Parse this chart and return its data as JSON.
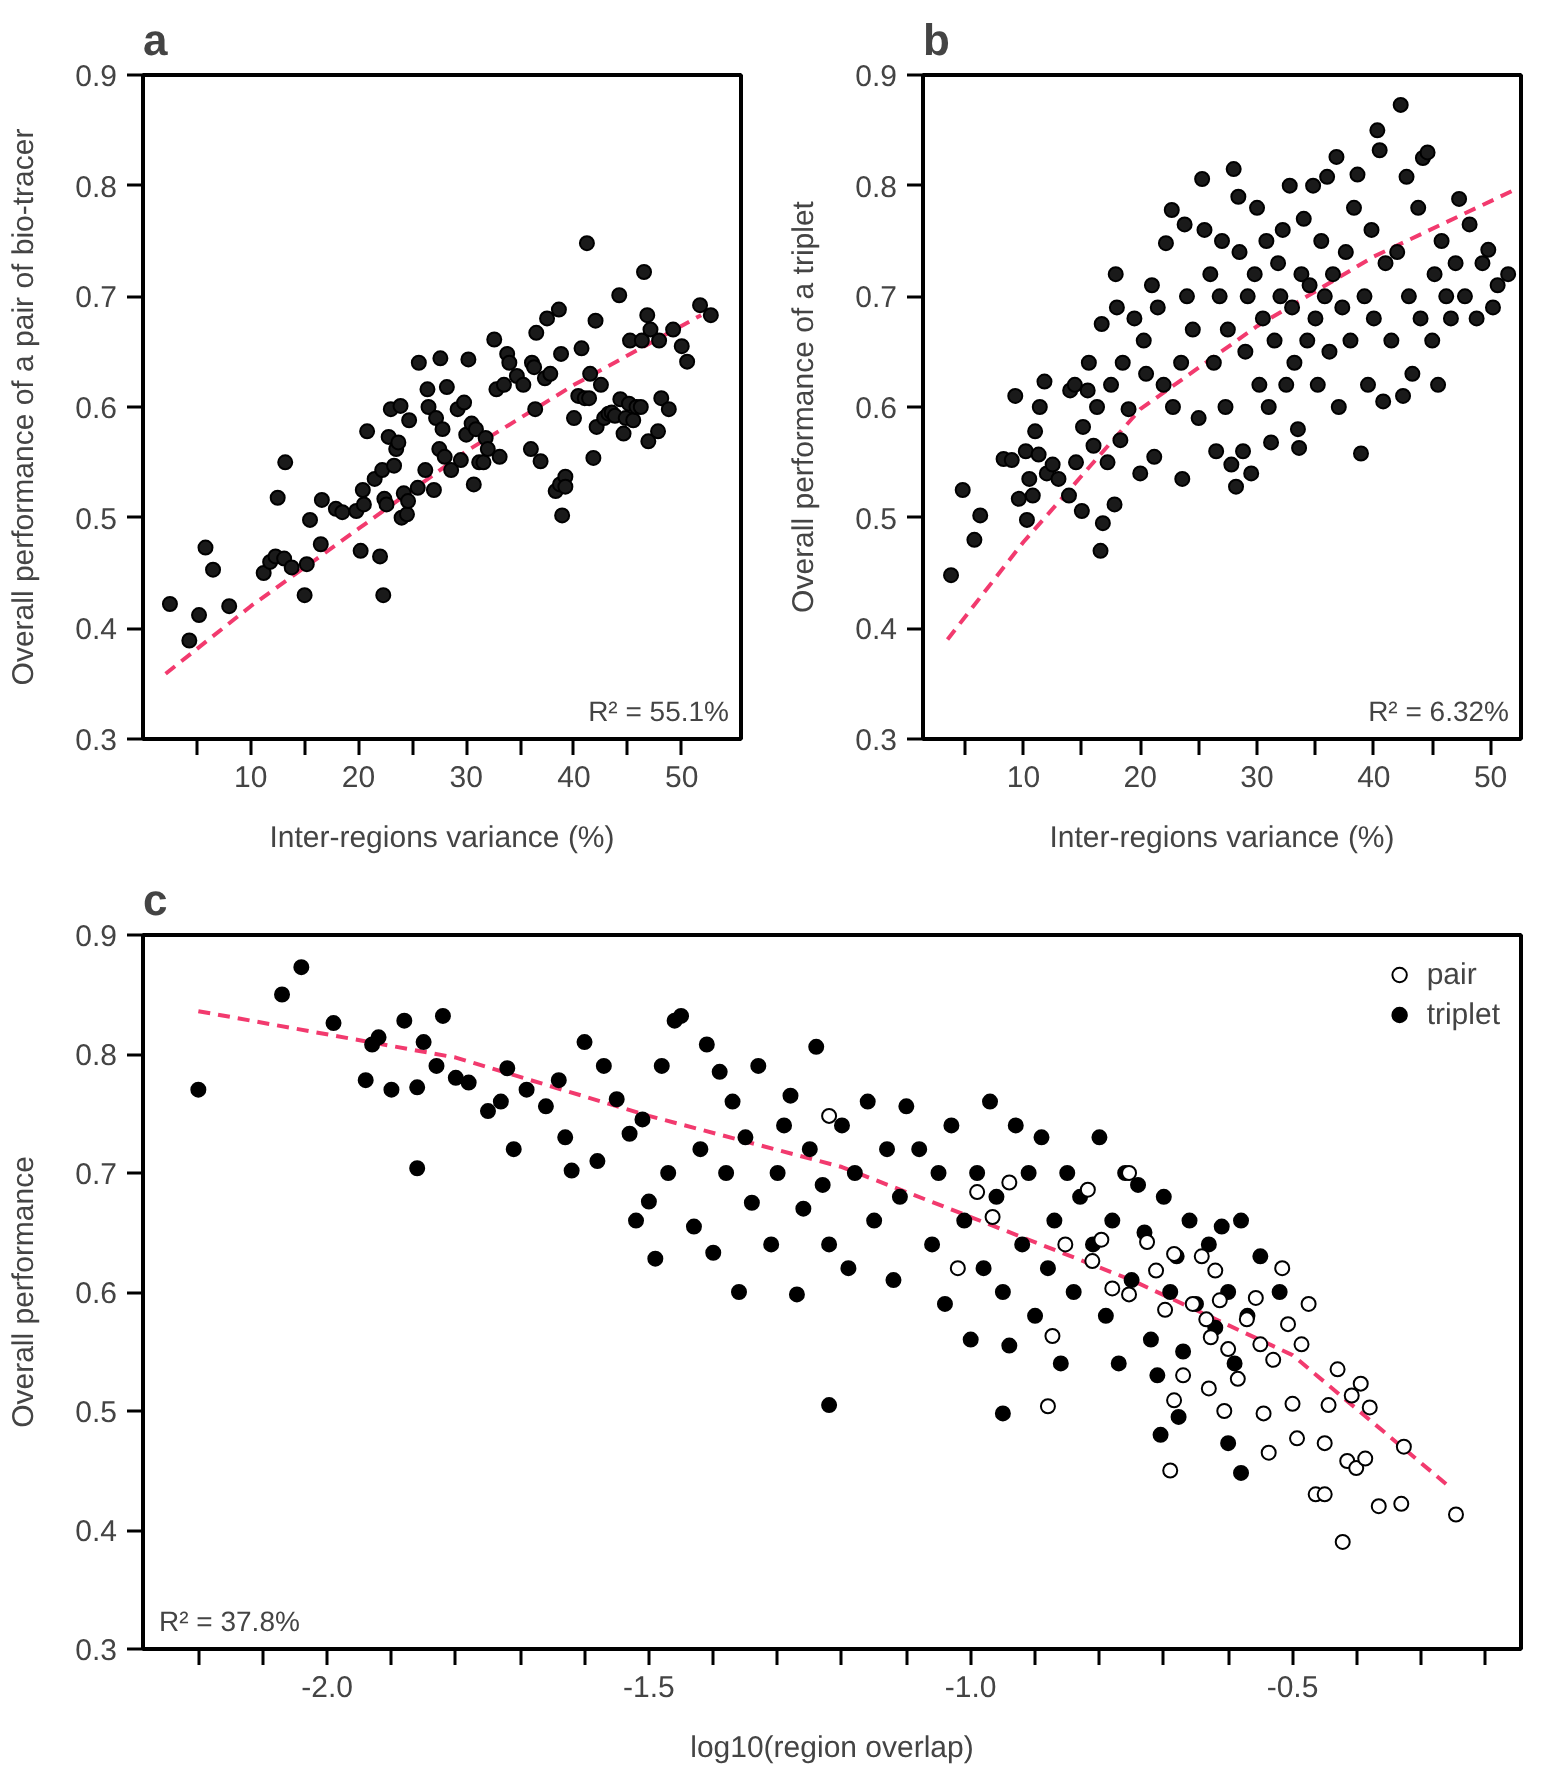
{
  "chart_data": [
    {
      "type": "scatter",
      "title": "a",
      "xlabel": "Inter-regions variance (%)",
      "ylabel": "Overall performance of a pair of bio-tracer",
      "xlim": [
        0,
        55.5
      ],
      "xticks": [
        {
          "value": 5,
          "label": null
        },
        10,
        {
          "value": 15,
          "label": null
        },
        20,
        {
          "value": 25,
          "label": null
        },
        30,
        {
          "value": 35,
          "label": null
        },
        40,
        {
          "value": 45,
          "label": null
        },
        50
      ],
      "ylim": [
        0.3,
        0.9
      ],
      "yticks": [
        0.3,
        0.4,
        0.5,
        0.6,
        0.7,
        0.8,
        0.9
      ],
      "grid": false,
      "annotations": [
        "R² = 55.1%"
      ],
      "series": [
        {
          "color": "#1a1a1a",
          "marker": "circle",
          "x": [
            2.5,
            4.3,
            5.2,
            5.8,
            6.5,
            8,
            11.2,
            11.8,
            12.3,
            12.5,
            13.1,
            13.2,
            13.8,
            15,
            15.2,
            15.5,
            16.5,
            16.6,
            17.9,
            18.5,
            19.8,
            20.2,
            20.4,
            20.5,
            20.8,
            21.5,
            22,
            22.3,
            22.2,
            22.4,
            22.6,
            22.8,
            23,
            23.3,
            23.5,
            23.7,
            23.9,
            24,
            24.2,
            24.5,
            24.6,
            24.7,
            25.5,
            25.6,
            26.2,
            26.4,
            26.5,
            27,
            27.2,
            27.5,
            27.6,
            27.8,
            28,
            28.2,
            28.6,
            29.2,
            29.5,
            29.8,
            30,
            30.2,
            30.5,
            30.7,
            30.9,
            31.2,
            31.6,
            31.8,
            32,
            32.6,
            32.8,
            33.1,
            33.5,
            33.8,
            34,
            34.7,
            35.3,
            36,
            36.1,
            36.3,
            36.4,
            36.5,
            36.9,
            37.3,
            37.5,
            37.8,
            38.3,
            38.6,
            38.7,
            38.8,
            38.9,
            39.2,
            39.2,
            40,
            40.4,
            40.7,
            41,
            41.2,
            41.4,
            41.5,
            41.8,
            42,
            42.1,
            42.5,
            42.8,
            43.2,
            43.5,
            43.8,
            44.2,
            44.3,
            44.6,
            44.8,
            45.1,
            45.2,
            45.5,
            45.8,
            46.2,
            46.3,
            46.5,
            46.8,
            46.9,
            47.1,
            47.8,
            47.9,
            48.1,
            48.8,
            49.2,
            50,
            50.5,
            51.7,
            52.7
          ],
          "values": [
            0.422,
            0.389,
            0.412,
            0.473,
            0.453,
            0.42,
            0.45,
            0.46,
            0.465,
            0.518,
            0.463,
            0.55,
            0.455,
            0.43,
            0.458,
            0.498,
            0.476,
            0.516,
            0.508,
            0.505,
            0.506,
            0.47,
            0.525,
            0.512,
            0.578,
            0.535,
            0.465,
            0.43,
            0.543,
            0.517,
            0.512,
            0.573,
            0.598,
            0.547,
            0.562,
            0.568,
            0.601,
            0.5,
            0.522,
            0.503,
            0.515,
            0.588,
            0.527,
            0.64,
            0.543,
            0.616,
            0.6,
            0.525,
            0.59,
            0.562,
            0.644,
            0.58,
            0.555,
            0.618,
            0.543,
            0.598,
            0.552,
            0.604,
            0.575,
            0.643,
            0.585,
            0.53,
            0.58,
            0.55,
            0.55,
            0.572,
            0.562,
            0.661,
            0.616,
            0.555,
            0.62,
            0.648,
            0.64,
            0.628,
            0.62,
            0.562,
            0.64,
            0.636,
            0.598,
            0.667,
            0.551,
            0.626,
            0.68,
            0.63,
            0.524,
            0.688,
            0.53,
            0.648,
            0.502,
            0.537,
            0.528,
            0.59,
            0.61,
            0.653,
            0.608,
            0.748,
            0.608,
            0.63,
            0.554,
            0.678,
            0.582,
            0.62,
            0.59,
            0.594,
            0.595,
            0.592,
            0.701,
            0.607,
            0.576,
            0.59,
            0.603,
            0.66,
            0.588,
            0.6,
            0.6,
            0.66,
            0.722,
            0.683,
            0.569,
            0.67,
            0.578,
            0.66,
            0.608,
            0.598,
            0.67,
            0.655,
            0.641,
            0.692,
            0.683
          ]
        },
        {
          "type": "line",
          "color": "#f23a6e",
          "line_style": "dashed",
          "marker": "none",
          "x": [
            2.1,
            10,
            20,
            30,
            40,
            51.8
          ],
          "values": [
            0.359,
            0.42,
            0.49,
            0.56,
            0.62,
            0.683
          ]
        }
      ]
    },
    {
      "type": "scatter",
      "title": "b",
      "xlabel": "Inter-regions variance (%)",
      "ylabel": "Overall performance of a triplet",
      "xlim": [
        1.4,
        52.6
      ],
      "xticks": [
        {
          "value": 5,
          "label": null
        },
        10,
        {
          "value": 15,
          "label": null
        },
        20,
        {
          "value": 25,
          "label": null
        },
        30,
        {
          "value": 35,
          "label": null
        },
        40,
        {
          "value": 45,
          "label": null
        },
        50
      ],
      "ylim": [
        0.3,
        0.9
      ],
      "yticks": [
        0.3,
        0.4,
        0.5,
        0.6,
        0.7,
        0.8,
        0.9
      ],
      "grid": false,
      "annotations": [
        "R² = 6.32%"
      ],
      "series": [
        {
          "color": "#1a1a1a",
          "marker": "circle",
          "x": [
            3.8,
            4.8,
            5.8,
            6.3,
            9.3,
            8.3,
            9,
            9.6,
            10.2,
            10.3,
            10.5,
            10.8,
            11,
            11.3,
            11.4,
            11.8,
            12,
            12.5,
            13,
            13.9,
            14,
            14.4,
            14.5,
            15,
            15.1,
            15.5,
            15.6,
            16,
            16.3,
            16.6,
            16.7,
            16.8,
            17.2,
            17.5,
            17.8,
            17.9,
            18,
            18.3,
            18.5,
            19,
            19.5,
            20,
            20.3,
            20.5,
            21,
            21.2,
            21.5,
            22,
            22.2,
            22.7,
            22.8,
            23.5,
            23.6,
            23.8,
            24,
            24.5,
            25,
            25.3,
            25.5,
            26,
            26.3,
            26.5,
            26.8,
            27,
            27.3,
            27.5,
            27.8,
            28,
            28.2,
            28.4,
            28.5,
            28.8,
            29,
            29.2,
            29.5,
            29.8,
            30,
            30.2,
            30.5,
            30.8,
            31,
            31.2,
            31.5,
            31.8,
            32,
            32.2,
            32.5,
            32.8,
            33,
            33.2,
            33.5,
            33.6,
            33.8,
            34,
            34.3,
            34.5,
            34.8,
            35,
            35.2,
            35.5,
            35.8,
            36,
            36.2,
            36.5,
            36.8,
            37,
            37.3,
            37.6,
            38,
            38.3,
            38.6,
            38.9,
            39.2,
            39.5,
            39.8,
            40,
            40.3,
            40.5,
            40.8,
            41,
            41.5,
            42,
            42.3,
            42.5,
            42.8,
            43,
            43.3,
            43.8,
            44,
            44.2,
            44.6,
            45,
            45.2,
            45.5,
            45.8,
            46.2,
            46.6,
            47,
            47.3,
            47.8,
            48.2,
            48.8,
            49.3,
            49.8,
            50.2,
            50.6,
            51.5
          ],
          "values": [
            0.448,
            0.525,
            0.48,
            0.502,
            0.61,
            0.553,
            0.552,
            0.517,
            0.56,
            0.498,
            0.535,
            0.52,
            0.578,
            0.557,
            0.6,
            0.623,
            0.54,
            0.548,
            0.535,
            0.52,
            0.615,
            0.62,
            0.55,
            0.506,
            0.582,
            0.615,
            0.64,
            0.565,
            0.6,
            0.47,
            0.675,
            0.495,
            0.55,
            0.62,
            0.512,
            0.72,
            0.69,
            0.57,
            0.64,
            0.598,
            0.68,
            0.54,
            0.66,
            0.63,
            0.71,
            0.555,
            0.69,
            0.62,
            0.748,
            0.778,
            0.6,
            0.64,
            0.535,
            0.765,
            0.7,
            0.67,
            0.59,
            0.806,
            0.76,
            0.72,
            0.64,
            0.56,
            0.7,
            0.75,
            0.6,
            0.67,
            0.548,
            0.815,
            0.528,
            0.79,
            0.74,
            0.56,
            0.65,
            0.7,
            0.54,
            0.72,
            0.78,
            0.62,
            0.68,
            0.75,
            0.6,
            0.568,
            0.66,
            0.73,
            0.7,
            0.76,
            0.62,
            0.8,
            0.69,
            0.64,
            0.58,
            0.563,
            0.72,
            0.77,
            0.66,
            0.71,
            0.8,
            0.68,
            0.62,
            0.75,
            0.7,
            0.808,
            0.65,
            0.72,
            0.826,
            0.6,
            0.69,
            0.74,
            0.66,
            0.78,
            0.81,
            0.558,
            0.7,
            0.62,
            0.76,
            0.68,
            0.85,
            0.832,
            0.605,
            0.73,
            0.66,
            0.74,
            0.873,
            0.61,
            0.808,
            0.7,
            0.63,
            0.78,
            0.68,
            0.825,
            0.83,
            0.66,
            0.72,
            0.62,
            0.75,
            0.7,
            0.68,
            0.73,
            0.788,
            0.7,
            0.765,
            0.68,
            0.73,
            0.742,
            0.69,
            0.71,
            0.72
          ]
        },
        {
          "type": "line",
          "color": "#f23a6e",
          "line_style": "dashed",
          "marker": "none",
          "x": [
            3.5,
            10,
            20,
            30,
            40,
            52.2
          ],
          "values": [
            0.39,
            0.478,
            0.598,
            0.673,
            0.736,
            0.797
          ]
        }
      ]
    },
    {
      "type": "scatter",
      "title": "c",
      "xlabel": "log10(region overlap)",
      "ylabel": "Overall performance",
      "xlim": [
        -2.286,
        -0.145
      ],
      "xticks": [
        {
          "value": -2.2,
          "label": null
        },
        {
          "value": -2.1,
          "label": null
        },
        {
          "value": -2.0,
          "label": "-2.0"
        },
        {
          "value": -1.9,
          "label": null
        },
        {
          "value": -1.8,
          "label": null
        },
        {
          "value": -1.7,
          "label": null
        },
        {
          "value": -1.6,
          "label": null
        },
        {
          "value": -1.5,
          "label": "-1.5"
        },
        {
          "value": -1.4,
          "label": null
        },
        {
          "value": -1.3,
          "label": null
        },
        {
          "value": -1.2,
          "label": null
        },
        {
          "value": -1.1,
          "label": null
        },
        {
          "value": -1.0,
          "label": "-1.0"
        },
        {
          "value": -0.9,
          "label": null
        },
        {
          "value": -0.8,
          "label": null
        },
        {
          "value": -0.7,
          "label": null
        },
        {
          "value": -0.6,
          "label": null
        },
        {
          "value": -0.5,
          "label": "-0.5"
        },
        {
          "value": -0.4,
          "label": null
        },
        {
          "value": -0.3,
          "label": null
        },
        {
          "value": -0.2,
          "label": null
        }
      ],
      "ylim": [
        0.3,
        0.9
      ],
      "yticks": [
        0.3,
        0.4,
        0.5,
        0.6,
        0.7,
        0.8,
        0.9
      ],
      "grid": false,
      "legend": "top right",
      "annotations": [
        "R² = 37.8%"
      ],
      "series": [
        {
          "name": "pair",
          "color": "#ffffff",
          "marker": "circle",
          "x": [
            -1.22,
            -0.754,
            -1.02,
            -0.99,
            -0.966,
            -0.94,
            -0.88,
            -0.873,
            -0.853,
            -0.818,
            -0.811,
            -0.797,
            -0.78,
            -0.754,
            -0.726,
            -0.712,
            -0.698,
            -0.69,
            -0.684,
            -0.684,
            -0.67,
            -0.655,
            -0.641,
            -0.634,
            -0.63,
            -0.627,
            -0.62,
            -0.613,
            -0.606,
            -0.6,
            -0.585,
            -0.571,
            -0.557,
            -0.55,
            -0.545,
            -0.537,
            -0.53,
            -0.516,
            -0.507,
            -0.5,
            -0.493,
            -0.486,
            -0.475,
            -0.464,
            -0.45,
            -0.45,
            -0.444,
            -0.43,
            -0.422,
            -0.415,
            -0.408,
            -0.401,
            -0.394,
            -0.387,
            -0.38,
            -0.366,
            -0.331,
            -0.327,
            -0.246
          ],
          "values": [
            0.748,
            0.7,
            0.62,
            0.684,
            0.663,
            0.692,
            0.504,
            0.563,
            0.64,
            0.686,
            0.626,
            0.644,
            0.603,
            0.598,
            0.642,
            0.618,
            0.585,
            0.45,
            0.509,
            0.632,
            0.53,
            0.59,
            0.63,
            0.577,
            0.519,
            0.562,
            0.618,
            0.593,
            0.5,
            0.552,
            0.527,
            0.577,
            0.595,
            0.556,
            0.498,
            0.465,
            0.543,
            0.62,
            0.573,
            0.506,
            0.477,
            0.556,
            0.59,
            0.43,
            0.43,
            0.473,
            0.505,
            0.535,
            0.39,
            0.458,
            0.513,
            0.452,
            0.523,
            0.46,
            0.503,
            0.42,
            0.422,
            0.47,
            0.413
          ]
        },
        {
          "name": "triplet",
          "color": "#000000",
          "marker": "circle",
          "x": [
            -2.2,
            -2.07,
            -2.04,
            -1.99,
            -1.94,
            -1.93,
            -1.92,
            -1.9,
            -1.88,
            -1.86,
            -1.85,
            -1.86,
            -1.83,
            -1.82,
            -1.8,
            -1.78,
            -1.75,
            -1.73,
            -1.72,
            -1.71,
            -1.69,
            -1.66,
            -1.64,
            -1.63,
            -1.62,
            -1.6,
            -1.58,
            -1.57,
            -1.55,
            -1.53,
            -1.52,
            -1.51,
            -1.5,
            -1.49,
            -1.48,
            -1.47,
            -1.46,
            -1.45,
            -1.43,
            -1.42,
            -1.41,
            -1.4,
            -1.39,
            -1.38,
            -1.37,
            -1.36,
            -1.35,
            -1.34,
            -1.33,
            -1.31,
            -1.3,
            -1.29,
            -1.28,
            -1.27,
            -1.26,
            -1.25,
            -1.24,
            -1.23,
            -1.22,
            -1.2,
            -1.19,
            -1.18,
            -1.16,
            -1.15,
            -1.13,
            -1.12,
            -1.11,
            -1.1,
            -1.08,
            -1.22,
            -1.06,
            -1.05,
            -1.04,
            -1.03,
            -1.01,
            -1.0,
            -0.99,
            -0.98,
            -0.97,
            -0.96,
            -0.95,
            -0.94,
            -0.93,
            -0.92,
            -0.91,
            -0.9,
            -0.89,
            -0.88,
            -0.87,
            -0.86,
            -0.85,
            -0.84,
            -0.83,
            -0.95,
            -0.81,
            -0.8,
            -0.79,
            -0.78,
            -0.77,
            -0.76,
            -0.75,
            -0.74,
            -0.73,
            -0.72,
            -0.71,
            -0.7,
            -0.69,
            -0.68,
            -0.67,
            -0.66,
            -0.65,
            -0.705,
            -0.63,
            -0.62,
            -0.61,
            -0.6,
            -0.59,
            -0.58,
            -0.57,
            -0.55,
            -0.677,
            -0.6,
            -0.58,
            -0.52
          ],
          "values": [
            0.77,
            0.85,
            0.873,
            0.826,
            0.778,
            0.808,
            0.814,
            0.77,
            0.828,
            0.772,
            0.81,
            0.704,
            0.79,
            0.832,
            0.78,
            0.776,
            0.752,
            0.76,
            0.788,
            0.72,
            0.77,
            0.756,
            0.778,
            0.73,
            0.702,
            0.81,
            0.71,
            0.79,
            0.762,
            0.733,
            0.66,
            0.745,
            0.676,
            0.628,
            0.79,
            0.7,
            0.828,
            0.832,
            0.655,
            0.72,
            0.808,
            0.633,
            0.785,
            0.7,
            0.76,
            0.6,
            0.73,
            0.675,
            0.79,
            0.64,
            0.7,
            0.74,
            0.765,
            0.598,
            0.67,
            0.72,
            0.806,
            0.69,
            0.64,
            0.74,
            0.62,
            0.7,
            0.76,
            0.66,
            0.72,
            0.61,
            0.68,
            0.756,
            0.72,
            0.505,
            0.64,
            0.7,
            0.59,
            0.74,
            0.66,
            0.56,
            0.7,
            0.62,
            0.76,
            0.68,
            0.6,
            0.555,
            0.74,
            0.64,
            0.7,
            0.58,
            0.73,
            0.62,
            0.66,
            0.54,
            0.7,
            0.6,
            0.68,
            0.498,
            0.64,
            0.73,
            0.58,
            0.66,
            0.54,
            0.7,
            0.61,
            0.69,
            0.65,
            0.56,
            0.53,
            0.68,
            0.6,
            0.63,
            0.55,
            0.66,
            0.59,
            0.48,
            0.64,
            0.57,
            0.655,
            0.6,
            0.54,
            0.66,
            0.58,
            0.63,
            0.495,
            0.473,
            0.448,
            0.6
          ]
        },
        {
          "type": "line",
          "color": "#f23a6e",
          "line_style": "dashed",
          "marker": "none",
          "x": [
            -2.2,
            -1.8,
            -1.5,
            -1.2,
            -1.0,
            -0.75,
            -0.5,
            -0.26
          ],
          "values": [
            0.836,
            0.797,
            0.748,
            0.705,
            0.663,
            0.61,
            0.547,
            0.438
          ]
        }
      ]
    }
  ]
}
